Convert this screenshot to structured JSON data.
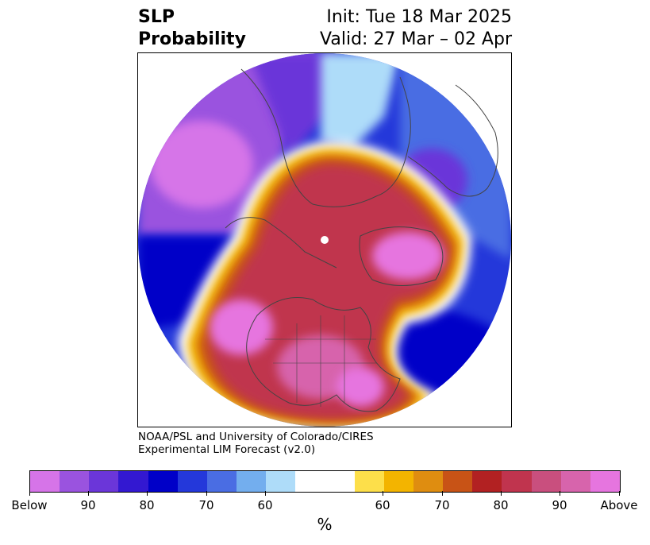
{
  "header": {
    "title_line1": "SLP",
    "title_line2": "Probability",
    "init_text": "Init: Tue 18 Mar 2025",
    "valid_text": "Valid: 27 Mar – 02 Apr"
  },
  "credit": {
    "line1": "NOAA/PSL and University of Colorado/CIRES",
    "line2": "Experimental LIM Forecast (v2.0)"
  },
  "colorbar": {
    "unit": "%",
    "colors": [
      "#d674e8",
      "#9a53df",
      "#6b36d9",
      "#3318d1",
      "#0000c8",
      "#2438da",
      "#4a6de3",
      "#73aeee",
      "#aedcf9",
      "#ffffff",
      "#fddf4a",
      "#f3b400",
      "#df8d10",
      "#c85316",
      "#b22122",
      "#c0344e",
      "#c94f7e",
      "#d764ac",
      "#e675df"
    ],
    "tick_labels": [
      "Below",
      "90",
      "80",
      "70",
      "60",
      "60",
      "70",
      "80",
      "90",
      "Above"
    ]
  },
  "map": {
    "projection": "north-polar-stereographic",
    "features": [
      "coastlines",
      "country-borders",
      "us-state-borders"
    ],
    "regions": [
      {
        "name": "north-america",
        "category": "Above"
      },
      {
        "name": "north-pacific",
        "category": "Below"
      },
      {
        "name": "siberia",
        "category": "Below"
      },
      {
        "name": "greenland-arctic",
        "category": "Above"
      },
      {
        "name": "north-atlantic",
        "category": "Below"
      },
      {
        "name": "europe",
        "category": "Below"
      }
    ]
  }
}
